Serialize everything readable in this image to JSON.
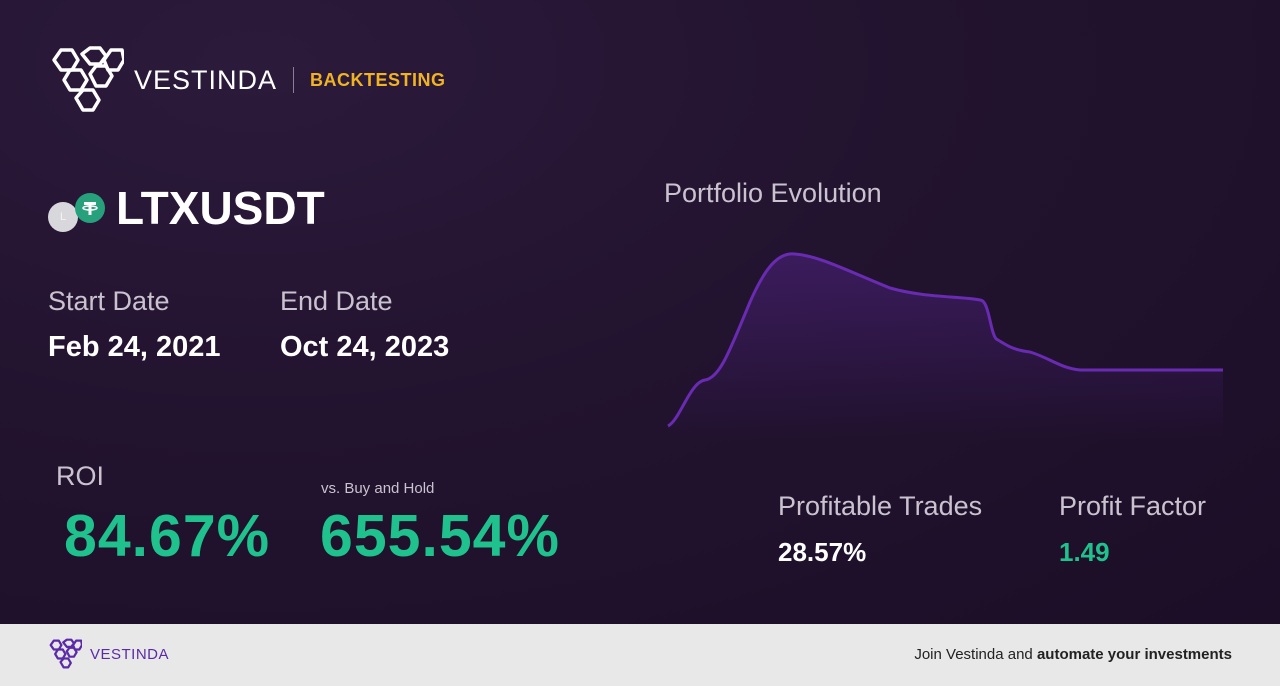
{
  "header": {
    "brand_name": "VESTINDA",
    "tag": "BACKTESTING"
  },
  "pair": {
    "name": "LTXUSDT",
    "base_icon": "L",
    "quote_icon": "tether-icon"
  },
  "dates": {
    "start_label": "Start Date",
    "start_value": "Feb 24, 2021",
    "end_label": "End Date",
    "end_value": "Oct 24, 2023"
  },
  "roi": {
    "label": "ROI",
    "value": "84.67%",
    "vs_label": "vs. Buy and Hold",
    "vs_value": "655.54%"
  },
  "chart": {
    "title": "Portfolio Evolution",
    "line_color": "#6a2bb3"
  },
  "stats": {
    "profitable_label": "Profitable Trades",
    "profitable_value": "28.57%",
    "profit_factor_label": "Profit Factor",
    "profit_factor_value": "1.49"
  },
  "footer": {
    "brand_name": "VESTINDA",
    "cta_prefix": "Join Vestinda and ",
    "cta_bold": "automate your investments"
  },
  "colors": {
    "accent_green": "#1fc18c",
    "accent_gold": "#f0b323",
    "brand_purple": "#5b2aa8"
  }
}
